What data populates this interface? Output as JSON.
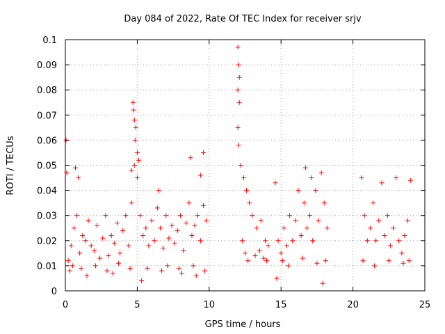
{
  "chart_data": {
    "type": "scatter",
    "title": "Day 084 of 2022, Rate Of TEC Index for receiver srjv",
    "xlabel": "GPS time / hours",
    "ylabel": "ROTI / TECUs",
    "xlim": [
      0,
      25
    ],
    "ylim": [
      0,
      0.1
    ],
    "x_ticks": [
      "0",
      "5",
      "10",
      "15",
      "20",
      "25"
    ],
    "y_ticks": [
      "0",
      "0.01",
      "0.02",
      "0.03",
      "0.04",
      "0.05",
      "0.06",
      "0.07",
      "0.08",
      "0.09",
      "0.1"
    ],
    "grid": true,
    "marker": "+",
    "color": "#ff0000",
    "series": [
      {
        "points": [
          [
            0.2,
            0.012
          ],
          [
            0.4,
            0.018
          ],
          [
            0.6,
            0.025
          ],
          [
            0.8,
            0.03
          ],
          [
            1.0,
            0.015
          ],
          [
            1.2,
            0.022
          ],
          [
            1.4,
            0.02
          ],
          [
            1.6,
            0.028
          ],
          [
            1.8,
            0.018
          ],
          [
            2.0,
            0.016
          ],
          [
            2.2,
            0.026
          ],
          [
            2.4,
            0.013
          ],
          [
            2.6,
            0.021
          ],
          [
            2.8,
            0.03
          ],
          [
            3.0,
            0.014
          ],
          [
            3.2,
            0.022
          ],
          [
            3.4,
            0.019
          ],
          [
            3.6,
            0.027
          ],
          [
            3.8,
            0.015
          ],
          [
            4.0,
            0.024
          ],
          [
            4.2,
            0.03
          ],
          [
            4.4,
            0.018
          ],
          [
            4.6,
            0.035
          ],
          [
            4.8,
            0.05
          ],
          [
            5.0,
            0.045
          ],
          [
            5.2,
            0.03
          ],
          [
            5.4,
            0.022
          ],
          [
            5.6,
            0.025
          ],
          [
            5.8,
            0.018
          ],
          [
            6.0,
            0.028
          ],
          [
            6.2,
            0.02
          ],
          [
            6.4,
            0.033
          ],
          [
            6.6,
            0.025
          ],
          [
            6.8,
            0.017
          ],
          [
            7.0,
            0.03
          ],
          [
            7.2,
            0.021
          ],
          [
            7.4,
            0.026
          ],
          [
            7.6,
            0.019
          ],
          [
            7.8,
            0.024
          ],
          [
            8.0,
            0.03
          ],
          [
            8.2,
            0.016
          ],
          [
            8.4,
            0.027
          ],
          [
            8.6,
            0.035
          ],
          [
            8.8,
            0.022
          ],
          [
            9.0,
            0.026
          ],
          [
            9.2,
            0.03
          ],
          [
            9.4,
            0.02
          ],
          [
            9.6,
            0.034
          ],
          [
            9.8,
            0.028
          ],
          [
            0.1,
            0.047
          ],
          [
            0.05,
            0.06
          ],
          [
            0.7,
            0.049
          ],
          [
            0.9,
            0.045
          ],
          [
            4.7,
            0.075
          ],
          [
            4.75,
            0.072
          ],
          [
            4.8,
            0.068
          ],
          [
            4.9,
            0.065
          ],
          [
            4.85,
            0.06
          ],
          [
            5.0,
            0.055
          ],
          [
            5.1,
            0.052
          ],
          [
            4.6,
            0.048
          ],
          [
            6.5,
            0.04
          ],
          [
            8.7,
            0.053
          ],
          [
            9.6,
            0.055
          ],
          [
            9.4,
            0.046
          ],
          [
            12.0,
            0.097
          ],
          [
            12.05,
            0.09
          ],
          [
            12.1,
            0.085
          ],
          [
            12.0,
            0.08
          ],
          [
            12.1,
            0.075
          ],
          [
            12.0,
            0.065
          ],
          [
            12.05,
            0.058
          ],
          [
            12.2,
            0.05
          ],
          [
            12.4,
            0.045
          ],
          [
            12.6,
            0.04
          ],
          [
            12.8,
            0.035
          ],
          [
            13.0,
            0.03
          ],
          [
            13.3,
            0.025
          ],
          [
            13.6,
            0.028
          ],
          [
            13.9,
            0.02
          ],
          [
            14.1,
            0.018
          ],
          [
            12.3,
            0.02
          ],
          [
            12.5,
            0.015
          ],
          [
            12.7,
            0.012
          ],
          [
            13.2,
            0.014
          ],
          [
            13.5,
            0.016
          ],
          [
            13.8,
            0.013
          ],
          [
            14.0,
            0.012
          ],
          [
            14.6,
            0.043
          ],
          [
            14.8,
            0.02
          ],
          [
            15.0,
            0.015
          ],
          [
            15.2,
            0.025
          ],
          [
            15.4,
            0.018
          ],
          [
            15.6,
            0.03
          ],
          [
            15.8,
            0.02
          ],
          [
            16.0,
            0.028
          ],
          [
            16.2,
            0.04
          ],
          [
            16.4,
            0.022
          ],
          [
            16.6,
            0.035
          ],
          [
            16.8,
            0.025
          ],
          [
            17.0,
            0.03
          ],
          [
            17.2,
            0.02
          ],
          [
            17.4,
            0.04
          ],
          [
            17.6,
            0.028
          ],
          [
            17.8,
            0.047
          ],
          [
            18.0,
            0.035
          ],
          [
            18.2,
            0.025
          ],
          [
            15.1,
            0.012
          ],
          [
            15.5,
            0.01
          ],
          [
            16.5,
            0.013
          ],
          [
            17.5,
            0.011
          ],
          [
            18.1,
            0.012
          ],
          [
            16.7,
            0.049
          ],
          [
            17.1,
            0.045
          ],
          [
            14.7,
            0.005
          ],
          [
            17.9,
            0.003
          ],
          [
            20.6,
            0.045
          ],
          [
            20.8,
            0.03
          ],
          [
            21.0,
            0.02
          ],
          [
            21.2,
            0.025
          ],
          [
            21.4,
            0.035
          ],
          [
            21.6,
            0.02
          ],
          [
            21.8,
            0.028
          ],
          [
            22.0,
            0.043
          ],
          [
            22.2,
            0.022
          ],
          [
            22.4,
            0.03
          ],
          [
            22.6,
            0.018
          ],
          [
            22.8,
            0.025
          ],
          [
            23.0,
            0.045
          ],
          [
            23.2,
            0.02
          ],
          [
            23.4,
            0.015
          ],
          [
            23.6,
            0.022
          ],
          [
            23.8,
            0.028
          ],
          [
            24.0,
            0.044
          ],
          [
            20.7,
            0.012
          ],
          [
            21.5,
            0.01
          ],
          [
            22.5,
            0.012
          ],
          [
            23.5,
            0.011
          ],
          [
            23.9,
            0.012
          ],
          [
            0.3,
            0.008
          ],
          [
            1.5,
            0.006
          ],
          [
            3.3,
            0.007
          ],
          [
            4.5,
            0.009
          ],
          [
            5.3,
            0.004
          ],
          [
            6.7,
            0.008
          ],
          [
            8.1,
            0.007
          ],
          [
            9.1,
            0.006
          ],
          [
            0.5,
            0.01
          ],
          [
            1.1,
            0.009
          ],
          [
            2.1,
            0.01
          ],
          [
            2.9,
            0.008
          ],
          [
            3.7,
            0.011
          ],
          [
            5.7,
            0.009
          ],
          [
            7.1,
            0.01
          ],
          [
            7.9,
            0.009
          ],
          [
            8.9,
            0.01
          ],
          [
            9.7,
            0.008
          ]
        ]
      }
    ]
  }
}
